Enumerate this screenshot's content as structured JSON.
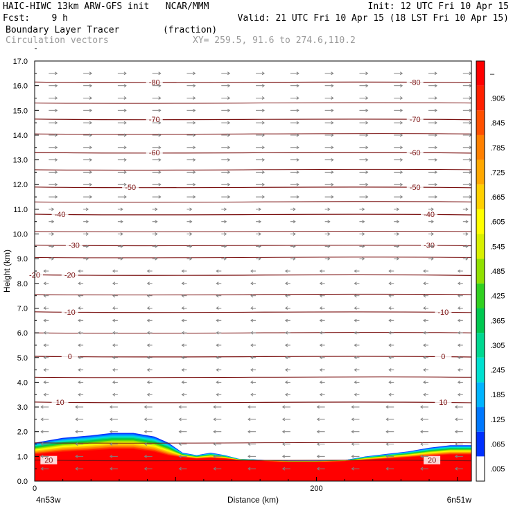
{
  "header": {
    "model_line": "HAIC-HIWC 13km ARW-GFS init   NCAR/MMM",
    "fcst_line": "Fcst:    9 h",
    "init_line": "Init: 12 UTC Fri 10 Apr 15",
    "valid_line": "Valid: 21 UTC Fri 10 Apr 15 (18 LST Fri 10 Apr 15)",
    "field_line": "Boundary Layer Tracer        (fraction)",
    "vector_line": "Circulation vectors",
    "xy_line": "XY= 259.5, 91.6 to 274.6,110.2"
  },
  "chart_data": {
    "type": "heatmap",
    "title": "Boundary Layer Tracer",
    "units": "fraction",
    "xlabel": "Distance (km)",
    "ylabel": "Height (km)",
    "xlim": [
      0,
      310
    ],
    "ylim": [
      0,
      17
    ],
    "x_ticks": [
      {
        "v": 0,
        "label": "0"
      },
      {
        "v": 200,
        "label": "200"
      }
    ],
    "x_endpoints": {
      "left": "4n53w",
      "right": "6n51w"
    },
    "y_ticks": [
      "0.0",
      "1.0",
      "2.0",
      "3.0",
      "4.0",
      "5.0",
      "6.0",
      "7.0",
      "8.0",
      "9.0",
      "10.0",
      "11.0",
      "12.0",
      "13.0",
      "14.0",
      "15.0",
      "16.0",
      "17.0"
    ],
    "colorbar_labels": [
      ".005",
      ".065",
      ".125",
      ".185",
      ".245",
      ".305",
      ".365",
      ".425",
      ".485",
      ".545",
      ".605",
      ".665",
      ".725",
      ".785",
      ".845",
      ".905",
      "–"
    ],
    "colorbar_colors": [
      "#ffffff",
      "#0030ff",
      "#0078ff",
      "#00b4ff",
      "#00e0d0",
      "#00d890",
      "#00c850",
      "#30d020",
      "#90e000",
      "#d8f000",
      "#ffff00",
      "#ffd000",
      "#ffa800",
      "#ff8000",
      "#ff5000",
      "#ff2000",
      "#ff0000"
    ],
    "tracer_profile": {
      "x": [
        0,
        20,
        40,
        55,
        70,
        85,
        95,
        105,
        115,
        125,
        135,
        145,
        155,
        165,
        180,
        200,
        220,
        235,
        250,
        265,
        280,
        295,
        310
      ],
      "top_km": [
        1.55,
        1.75,
        1.85,
        1.95,
        1.95,
        1.8,
        1.55,
        1.15,
        1.05,
        1.15,
        1.05,
        0.9,
        0.88,
        0.85,
        0.82,
        0.82,
        0.85,
        1.0,
        1.1,
        1.2,
        1.35,
        1.45,
        1.45
      ],
      "core_km": [
        1.05,
        1.15,
        1.2,
        1.25,
        1.25,
        1.15,
        1.0,
        0.95,
        0.9,
        0.92,
        0.9,
        0.85,
        0.82,
        0.8,
        0.78,
        0.78,
        0.8,
        0.85,
        0.9,
        0.95,
        1.0,
        1.05,
        1.05
      ]
    },
    "isotherms": [
      {
        "label": "-80",
        "y_km": 16.15,
        "label_x": [
          85,
          270
        ]
      },
      {
        "label": "-70",
        "y_km": 14.65,
        "label_x": [
          85,
          270
        ]
      },
      {
        "label": "-60",
        "y_km": 13.3,
        "label_x": [
          85,
          270
        ]
      },
      {
        "label": "-50",
        "y_km": 11.9,
        "label_x": [
          68,
          270
        ]
      },
      {
        "label": "-40",
        "y_km": 10.8,
        "label_x": [
          18,
          280
        ]
      },
      {
        "label": "-30",
        "y_km": 9.55,
        "label_x": [
          28,
          280
        ]
      },
      {
        "label": "-20",
        "y_km": 8.35,
        "label_x": [
          25,
          0
        ]
      },
      {
        "label": "-10",
        "y_km": 6.85,
        "label_x": [
          25,
          290
        ]
      },
      {
        "label": "0",
        "y_km": 5.05,
        "label_x": [
          25,
          290
        ]
      },
      {
        "label": "10",
        "y_km": 3.2,
        "label_x": [
          18,
          290
        ]
      },
      {
        "label": "20",
        "y_km": 0.85,
        "label_x": [
          10,
          282
        ]
      }
    ],
    "unlabeled_contour_km": [
      15.3,
      14.05,
      12.6,
      11.3,
      10.1,
      9.05,
      7.55,
      6.0,
      4.2,
      1.55
    ],
    "grid": false,
    "legend": "colorbar-right"
  }
}
